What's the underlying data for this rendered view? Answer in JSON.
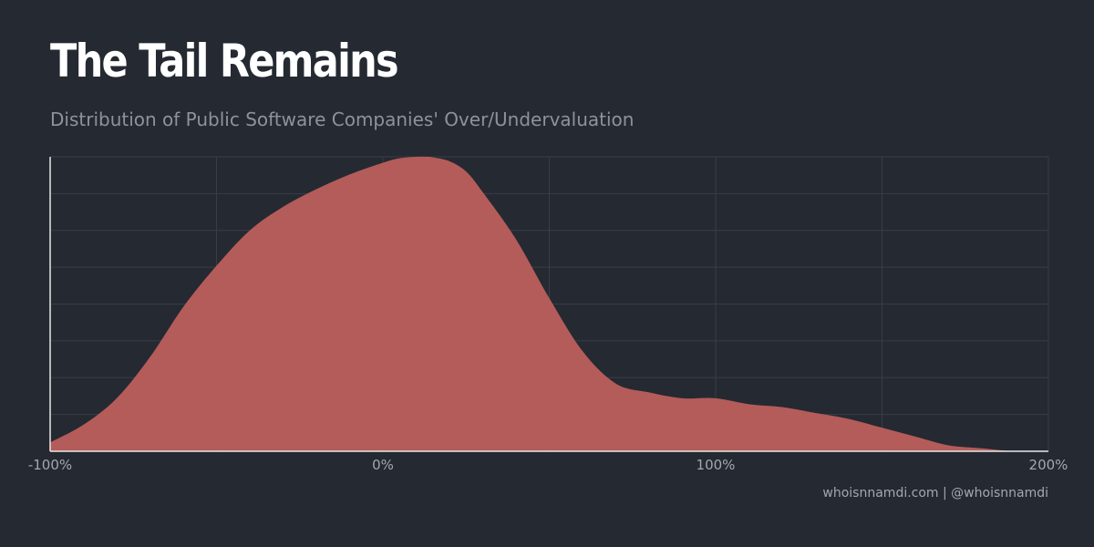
{
  "header": {
    "title": "The Tail Remains",
    "subtitle": "Distribution of Public Software Companies' Over/Undervaluation"
  },
  "footer": {
    "credit": "whoisnnamdi.com | @whoisnnamdi"
  },
  "colors": {
    "background": "#252932",
    "fill": "#c0605c",
    "grid": "#383d47",
    "axis": "#e8e8e8"
  },
  "chart_data": {
    "type": "area",
    "title": "The Tail Remains",
    "subtitle": "Distribution of Public Software Companies' Over/Undervaluation",
    "xlabel": "",
    "ylabel": "",
    "xlim": [
      -100,
      200
    ],
    "ylim": [
      0,
      1
    ],
    "x_ticks": [
      -100,
      0,
      100,
      200
    ],
    "x_tick_labels": [
      "-100%",
      "0%",
      "100%",
      "200%"
    ],
    "grid": true,
    "legend": "none",
    "series": [
      {
        "x": [
          -100,
          -90,
          -80,
          -70,
          -60,
          -50,
          -40,
          -30,
          -20,
          -10,
          0,
          5,
          10,
          13,
          15,
          20,
          25,
          30,
          40,
          50,
          60,
          70,
          80,
          90,
          100,
          110,
          120,
          130,
          140,
          150,
          160,
          170,
          180,
          190,
          200
        ],
        "y": [
          0.03,
          0.09,
          0.18,
          0.32,
          0.49,
          0.63,
          0.75,
          0.83,
          0.89,
          0.94,
          0.98,
          0.995,
          1.0,
          1.0,
          0.998,
          0.985,
          0.95,
          0.88,
          0.72,
          0.52,
          0.34,
          0.23,
          0.2,
          0.18,
          0.18,
          0.16,
          0.15,
          0.13,
          0.11,
          0.08,
          0.05,
          0.02,
          0.01,
          0.0,
          0.0
        ]
      }
    ]
  }
}
